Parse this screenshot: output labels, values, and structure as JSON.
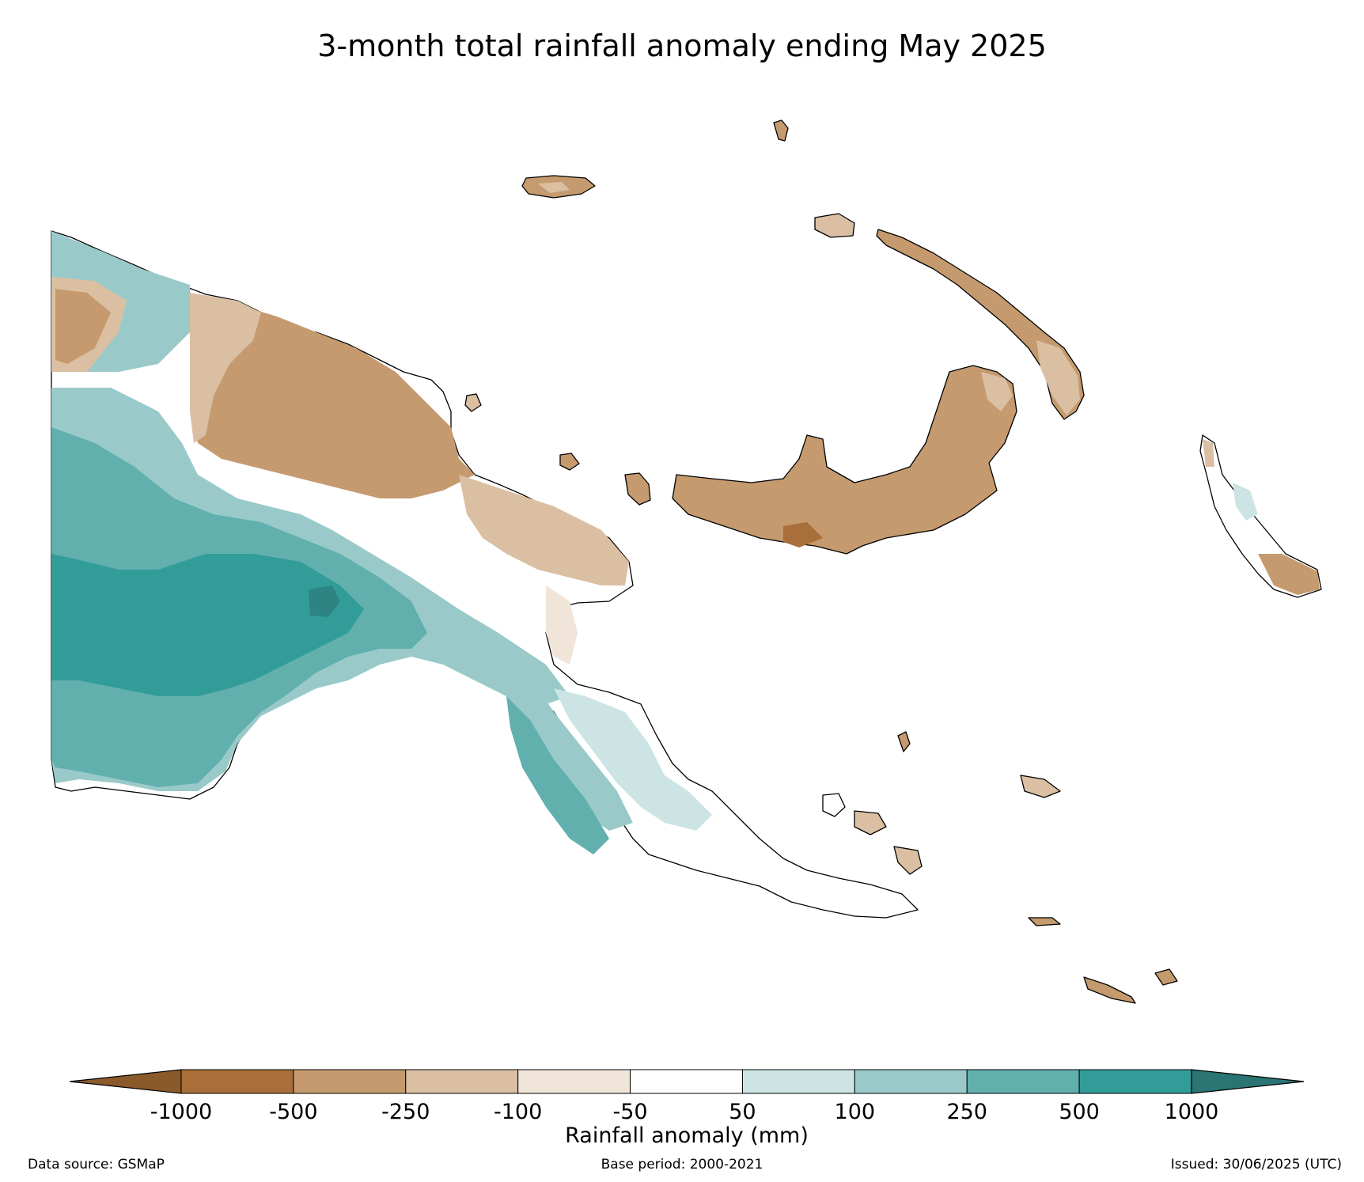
{
  "title": "3-month total rainfall anomaly ending May 2025",
  "colorbar": {
    "label": "Rainfall anomaly (mm)",
    "ticks": [
      "-1000",
      "-500",
      "-250",
      "-100",
      "-50",
      "50",
      "100",
      "250",
      "500",
      "1000"
    ],
    "below_color": "#8b5a2b",
    "above_color": "#2a7573",
    "bins": [
      {
        "from": "-1000",
        "to": "-500",
        "color": "#a86f3a"
      },
      {
        "from": "-500",
        "to": "-250",
        "color": "#c49a6e"
      },
      {
        "from": "-250",
        "to": "-100",
        "color": "#dbbfa3"
      },
      {
        "from": "-100",
        "to": "-50",
        "color": "#f1e5da"
      },
      {
        "from": "-50",
        "to": "50",
        "color": "#ffffff"
      },
      {
        "from": "50",
        "to": "100",
        "color": "#cce5e4"
      },
      {
        "from": "100",
        "to": "250",
        "color": "#99cac9"
      },
      {
        "from": "250",
        "to": "500",
        "color": "#61b0ae"
      },
      {
        "from": "500",
        "to": "1000",
        "color": "#329c99"
      }
    ]
  },
  "footer": {
    "source": "Data source: GSMaP",
    "base_period": "Base period: 2000-2021",
    "issued": "Issued: 30/06/2025 (UTC)"
  }
}
